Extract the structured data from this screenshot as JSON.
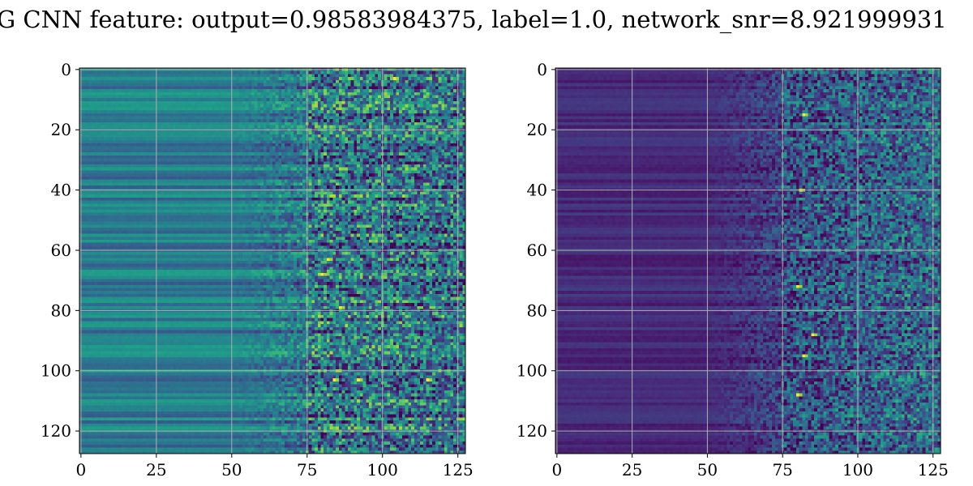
{
  "figure": {
    "title": "G CNN feature: output=0.98583984375, label=1.0, network_snr=8.921999931"
  },
  "chart_data": [
    {
      "type": "heatmap",
      "title": "",
      "xlabel": "",
      "ylabel": "",
      "xlim": [
        -0.5,
        127.5
      ],
      "ylim": [
        127.5,
        -0.5
      ],
      "x_ticks": [
        0,
        25,
        50,
        75,
        100,
        125
      ],
      "y_ticks": [
        0,
        20,
        40,
        60,
        80,
        100,
        120
      ],
      "grid": true,
      "colormap": "viridis",
      "rows": 128,
      "cols": 128,
      "description_values": "per-pixel values not individually labelled; left columns smooth horizontal bands, right columns (x>75) noisy with bright spots",
      "bright_spots": [
        [
          82,
          63
        ],
        [
          80,
          68
        ],
        [
          84,
          103
        ],
        [
          92,
          103
        ],
        [
          115,
          103
        ],
        [
          104,
          3
        ],
        [
          86,
          79
        ]
      ]
    },
    {
      "type": "heatmap",
      "title": "",
      "xlabel": "",
      "ylabel": "",
      "xlim": [
        -0.5,
        127.5
      ],
      "ylim": [
        127.5,
        -0.5
      ],
      "x_ticks": [
        0,
        25,
        50,
        75,
        100,
        125
      ],
      "y_ticks": [
        0,
        20,
        40,
        60,
        80,
        100,
        120
      ],
      "grid": true,
      "colormap": "viridis",
      "rows": 128,
      "cols": 128,
      "description_values": "per-pixel values not individually labelled; mostly dark left region, noisy right region (x>75) with bright spots",
      "bright_spots": [
        [
          82,
          15
        ],
        [
          81,
          40
        ],
        [
          80,
          72
        ],
        [
          85,
          88
        ],
        [
          80,
          108
        ],
        [
          82,
          95
        ]
      ]
    }
  ],
  "colors": {
    "grid": "#b0b0b0",
    "axis": "#000000",
    "viridis": [
      "#440154",
      "#482878",
      "#3e4989",
      "#31688e",
      "#26828e",
      "#1f9e89",
      "#35b779",
      "#6ece58",
      "#b5de2b",
      "#fde725"
    ]
  }
}
